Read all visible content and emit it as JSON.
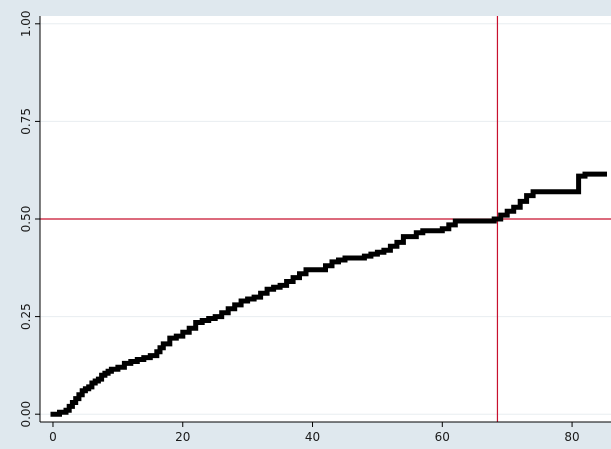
{
  "chart_data": {
    "type": "line",
    "title": "",
    "xlabel": "",
    "ylabel": "",
    "xlim": [
      -2,
      86
    ],
    "ylim": [
      -0.02,
      1.02
    ],
    "x_ticks": [
      0,
      20,
      40,
      60,
      80
    ],
    "x_tick_labels": [
      "0",
      "20",
      "40",
      "60",
      "80"
    ],
    "y_ticks": [
      0,
      0.25,
      0.5,
      0.75,
      1
    ],
    "y_tick_labels": [
      "0.00",
      "0.25",
      "0.50",
      "0.75",
      "1.00"
    ],
    "grid": "horizontal",
    "step": true,
    "series": [
      {
        "color": "#000000",
        "x": [
          0,
          1,
          2,
          2.5,
          3,
          3.5,
          4,
          4.5,
          5,
          5.5,
          6,
          6.5,
          7,
          7.5,
          8,
          8.5,
          9,
          10,
          11,
          12,
          13,
          14,
          15,
          16,
          16.5,
          17,
          18,
          19,
          20,
          21,
          22,
          23,
          24,
          25,
          26,
          27,
          28,
          29,
          30,
          31,
          32,
          33,
          34,
          35,
          36,
          37,
          38,
          39,
          40,
          41,
          42,
          43,
          44,
          45,
          46,
          47,
          48,
          49,
          50,
          51,
          52,
          53,
          54,
          56,
          57,
          60,
          61,
          62,
          68,
          69,
          70,
          71,
          72,
          73,
          74,
          80,
          81,
          82,
          85
        ],
        "y": [
          0.0,
          0.005,
          0.01,
          0.02,
          0.03,
          0.04,
          0.05,
          0.06,
          0.065,
          0.07,
          0.08,
          0.085,
          0.09,
          0.1,
          0.105,
          0.11,
          0.115,
          0.12,
          0.13,
          0.135,
          0.14,
          0.145,
          0.15,
          0.16,
          0.17,
          0.18,
          0.195,
          0.2,
          0.21,
          0.22,
          0.235,
          0.24,
          0.245,
          0.25,
          0.26,
          0.27,
          0.28,
          0.29,
          0.295,
          0.3,
          0.31,
          0.32,
          0.325,
          0.33,
          0.34,
          0.35,
          0.36,
          0.37,
          0.37,
          0.37,
          0.38,
          0.39,
          0.395,
          0.4,
          0.4,
          0.4,
          0.405,
          0.41,
          0.415,
          0.42,
          0.43,
          0.44,
          0.455,
          0.465,
          0.47,
          0.475,
          0.485,
          0.495,
          0.5,
          0.51,
          0.52,
          0.53,
          0.545,
          0.56,
          0.57,
          0.57,
          0.61,
          0.615,
          0.615
        ]
      }
    ],
    "reference_lines": [
      {
        "orientation": "horizontal",
        "value": 0.5,
        "color": "#c8102e"
      },
      {
        "orientation": "vertical",
        "value": 68.5,
        "color": "#c8102e"
      }
    ],
    "plot_background": "#ffffff",
    "frame_background": "#dfe8ee",
    "gridline_color": "#e8edf0"
  }
}
